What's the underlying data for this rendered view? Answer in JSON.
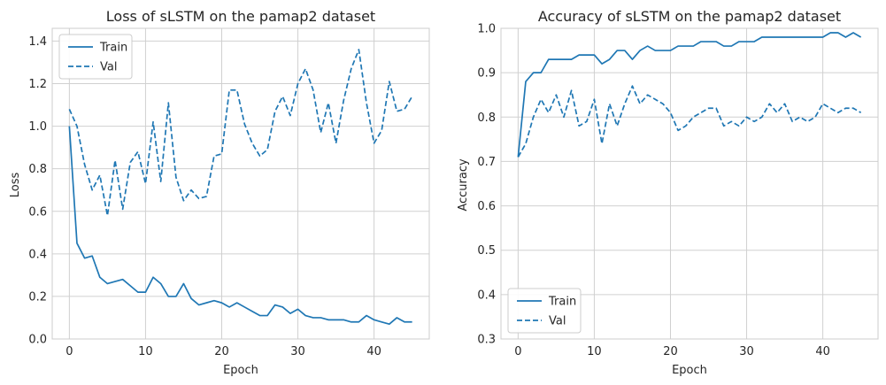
{
  "chart_data": [
    {
      "type": "line",
      "title": "Loss of sLSTM on the pamap2 dataset",
      "xlabel": "Epoch",
      "ylabel": "Loss",
      "xlim": [
        -2.25,
        47.25
      ],
      "ylim": [
        0.0,
        1.46
      ],
      "xticks": [
        0,
        10,
        20,
        30,
        40
      ],
      "yticks": [
        0.0,
        0.2,
        0.4,
        0.6,
        0.8,
        1.0,
        1.2,
        1.4
      ],
      "ytick_labels": [
        "0.0",
        "0.2",
        "0.4",
        "0.6",
        "0.8",
        "1.0",
        "1.2",
        "1.4"
      ],
      "grid": true,
      "legend_position": "upper-left",
      "x": [
        0,
        1,
        2,
        3,
        4,
        5,
        6,
        7,
        8,
        9,
        10,
        11,
        12,
        13,
        14,
        15,
        16,
        17,
        18,
        19,
        20,
        21,
        22,
        23,
        24,
        25,
        26,
        27,
        28,
        29,
        30,
        31,
        32,
        33,
        34,
        35,
        36,
        37,
        38,
        39,
        40,
        41,
        42,
        43,
        44,
        45
      ],
      "series": [
        {
          "name": "Train",
          "style": "solid",
          "color": "#1f77b4",
          "values": [
            1.0,
            0.45,
            0.38,
            0.39,
            0.29,
            0.26,
            0.27,
            0.28,
            0.25,
            0.22,
            0.22,
            0.29,
            0.26,
            0.2,
            0.2,
            0.26,
            0.19,
            0.16,
            0.17,
            0.18,
            0.17,
            0.15,
            0.17,
            0.15,
            0.13,
            0.11,
            0.11,
            0.16,
            0.15,
            0.12,
            0.14,
            0.11,
            0.1,
            0.1,
            0.09,
            0.09,
            0.09,
            0.08,
            0.08,
            0.11,
            0.09,
            0.08,
            0.07,
            0.1,
            0.08,
            0.08
          ]
        },
        {
          "name": "Val",
          "style": "dashed",
          "color": "#1f77b4",
          "values": [
            1.08,
            1.0,
            0.82,
            0.7,
            0.77,
            0.58,
            0.84,
            0.61,
            0.83,
            0.88,
            0.73,
            1.02,
            0.74,
            1.11,
            0.76,
            0.65,
            0.7,
            0.66,
            0.67,
            0.86,
            0.87,
            1.17,
            1.17,
            1.01,
            0.92,
            0.86,
            0.89,
            1.07,
            1.14,
            1.05,
            1.2,
            1.27,
            1.17,
            0.97,
            1.11,
            0.92,
            1.12,
            1.27,
            1.36,
            1.11,
            0.92,
            0.98,
            1.21,
            1.07,
            1.08,
            1.14
          ]
        }
      ]
    },
    {
      "type": "line",
      "title": "Accuracy of sLSTM on the pamap2 dataset",
      "xlabel": "Epoch",
      "ylabel": "Accuracy",
      "xlim": [
        -2.25,
        47.25
      ],
      "ylim": [
        0.3,
        1.0
      ],
      "xticks": [
        0,
        10,
        20,
        30,
        40
      ],
      "yticks": [
        0.3,
        0.4,
        0.5,
        0.6,
        0.7,
        0.8,
        0.9,
        1.0
      ],
      "ytick_labels": [
        "0.3",
        "0.4",
        "0.5",
        "0.6",
        "0.7",
        "0.8",
        "0.9",
        "1.0"
      ],
      "grid": true,
      "legend_position": "lower-left",
      "x": [
        0,
        1,
        2,
        3,
        4,
        5,
        6,
        7,
        8,
        9,
        10,
        11,
        12,
        13,
        14,
        15,
        16,
        17,
        18,
        19,
        20,
        21,
        22,
        23,
        24,
        25,
        26,
        27,
        28,
        29,
        30,
        31,
        32,
        33,
        34,
        35,
        36,
        37,
        38,
        39,
        40,
        41,
        42,
        43,
        44,
        45
      ],
      "series": [
        {
          "name": "Train",
          "style": "solid",
          "color": "#1f77b4",
          "values": [
            0.71,
            0.88,
            0.9,
            0.9,
            0.93,
            0.93,
            0.93,
            0.93,
            0.94,
            0.94,
            0.94,
            0.92,
            0.93,
            0.95,
            0.95,
            0.93,
            0.95,
            0.96,
            0.95,
            0.95,
            0.95,
            0.96,
            0.96,
            0.96,
            0.97,
            0.97,
            0.97,
            0.96,
            0.96,
            0.97,
            0.97,
            0.97,
            0.98,
            0.98,
            0.98,
            0.98,
            0.98,
            0.98,
            0.98,
            0.98,
            0.98,
            0.99,
            0.99,
            0.98,
            0.99,
            0.98
          ]
        },
        {
          "name": "Val",
          "style": "dashed",
          "color": "#1f77b4",
          "values": [
            0.71,
            0.74,
            0.8,
            0.84,
            0.81,
            0.85,
            0.8,
            0.86,
            0.78,
            0.79,
            0.84,
            0.74,
            0.83,
            0.78,
            0.83,
            0.87,
            0.83,
            0.85,
            0.84,
            0.83,
            0.81,
            0.77,
            0.78,
            0.8,
            0.81,
            0.82,
            0.82,
            0.78,
            0.79,
            0.78,
            0.8,
            0.79,
            0.8,
            0.83,
            0.81,
            0.83,
            0.79,
            0.8,
            0.79,
            0.8,
            0.83,
            0.82,
            0.81,
            0.82,
            0.82,
            0.81
          ]
        }
      ]
    }
  ]
}
